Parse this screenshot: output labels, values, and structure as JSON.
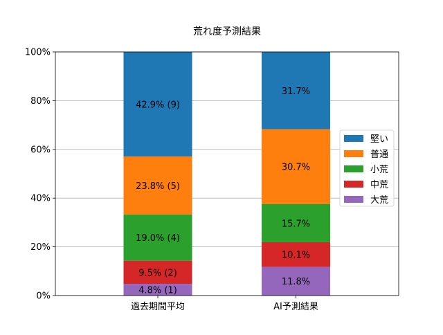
{
  "chart_data": {
    "type": "bar",
    "stacked": true,
    "title": "荒れ度予測結果",
    "xlabel": "",
    "ylabel": "",
    "ylim": [
      0,
      100
    ],
    "yticks": [
      "0%",
      "20%",
      "40%",
      "60%",
      "80%",
      "100%"
    ],
    "ytick_values": [
      0,
      20,
      40,
      60,
      80,
      100
    ],
    "grid": "horizontal",
    "legend_position": "center-right",
    "categories": [
      "過去期間平均",
      "AI予測結果"
    ],
    "series": [
      {
        "name": "大荒",
        "color": "#9467bd",
        "values": [
          4.8,
          11.8
        ],
        "labels": [
          "4.8% (1)",
          "11.8%"
        ]
      },
      {
        "name": "中荒",
        "color": "#d62728",
        "values": [
          9.5,
          10.1
        ],
        "labels": [
          "9.5% (2)",
          "10.1%"
        ]
      },
      {
        "name": "小荒",
        "color": "#2ca02c",
        "values": [
          19.0,
          15.7
        ],
        "labels": [
          "19.0% (4)",
          "15.7%"
        ]
      },
      {
        "name": "普通",
        "color": "#ff7f0e",
        "values": [
          23.8,
          30.7
        ],
        "labels": [
          "23.8% (5)",
          "30.7%"
        ]
      },
      {
        "name": "堅い",
        "color": "#1f77b4",
        "values": [
          42.9,
          31.7
        ],
        "labels": [
          "42.9% (9)",
          "31.7%"
        ]
      }
    ],
    "legend_order": [
      "堅い",
      "普通",
      "小荒",
      "中荒",
      "大荒"
    ]
  }
}
